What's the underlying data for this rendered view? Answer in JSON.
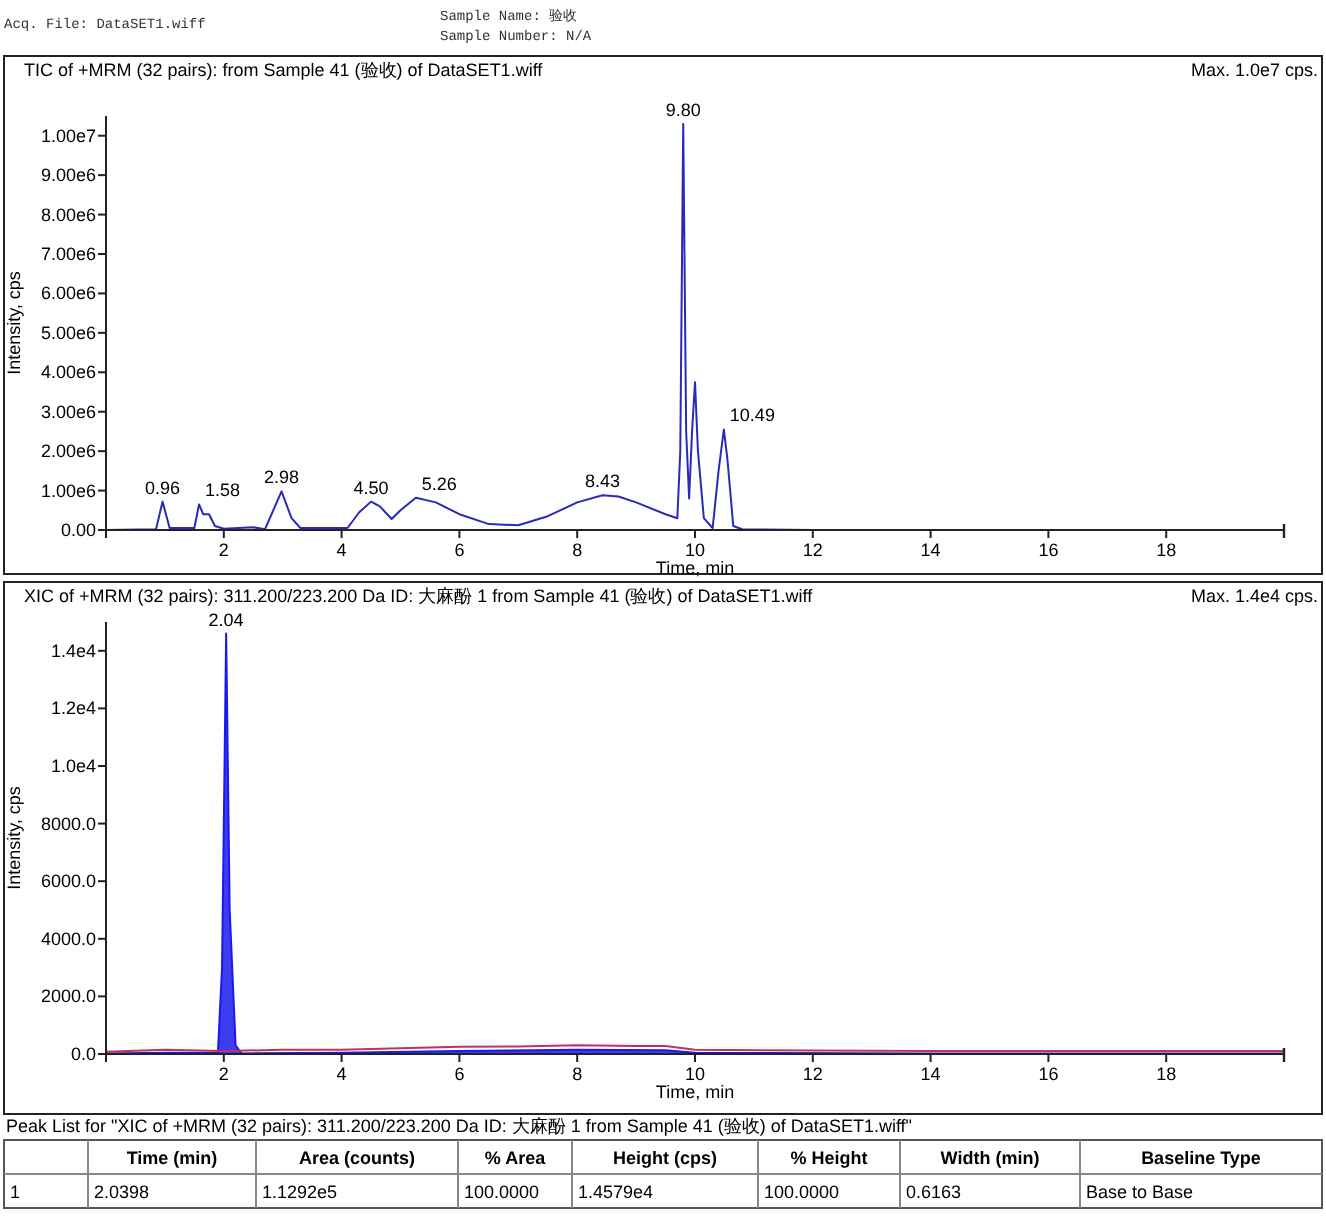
{
  "chart_data": [
    {
      "type": "other",
      "annotations": [
        "Acq. File: DataSET1.wiff",
        "Sample Name: 验收",
        "Sample Number: N/A"
      ]
    },
    {
      "type": "line",
      "title": "TIC of +MRM (32 pairs): from Sample 41 (验收) of DataSET1.wiff",
      "xlabel": "Time, min",
      "ylabel": "Intensity, cps",
      "annotations": [
        "Max. 1.0e7 cps.",
        {
          "text": "0.96",
          "x": 0.96,
          "y": 720000
        },
        {
          "text": "1.58",
          "x": 1.58,
          "y": 650000
        },
        {
          "text": "2.98",
          "x": 2.98,
          "y": 980000
        },
        {
          "text": "4.50",
          "x": 4.5,
          "y": 720000
        },
        {
          "text": "5.26",
          "x": 5.26,
          "y": 820000
        },
        {
          "text": "8.43",
          "x": 8.43,
          "y": 880000
        },
        {
          "text": "9.80",
          "x": 9.8,
          "y": 10300000
        },
        {
          "text": "10.49",
          "x": 10.49,
          "y": 2550000
        }
      ],
      "xlim": [
        0,
        20
      ],
      "xticks": [
        2,
        4,
        6,
        8,
        10,
        12,
        14,
        16,
        18
      ],
      "ylim": [
        0,
        10500000
      ],
      "yticks": [
        {
          "value": 0,
          "label": "0.00"
        },
        {
          "value": 1000000,
          "label": "1.00e6"
        },
        {
          "value": 2000000,
          "label": "2.00e6"
        },
        {
          "value": 3000000,
          "label": "3.00e6"
        },
        {
          "value": 4000000,
          "label": "4.00e6"
        },
        {
          "value": 5000000,
          "label": "5.00e6"
        },
        {
          "value": 6000000,
          "label": "6.00e6"
        },
        {
          "value": 7000000,
          "label": "7.00e6"
        },
        {
          "value": 8000000,
          "label": "8.00e6"
        },
        {
          "value": 9000000,
          "label": "9.00e6"
        },
        {
          "value": 10000000,
          "label": "1.00e7"
        }
      ],
      "series": [
        {
          "color": "#2a2ab8",
          "x": [
            0,
            0.85,
            0.96,
            1.08,
            1.5,
            1.58,
            1.65,
            1.75,
            1.85,
            2.0,
            2.5,
            2.7,
            2.98,
            3.15,
            3.3,
            4.1,
            4.3,
            4.5,
            4.65,
            4.85,
            5.0,
            5.26,
            5.6,
            6.0,
            6.5,
            7.0,
            7.5,
            8.0,
            8.43,
            8.7,
            9.0,
            9.5,
            9.7,
            9.75,
            9.8,
            9.85,
            9.9,
            9.95,
            10.0,
            10.05,
            10.15,
            10.3,
            10.4,
            10.49,
            10.55,
            10.65,
            10.8,
            12,
            20
          ],
          "values": [
            0,
            20000,
            720000,
            50000,
            50000,
            650000,
            400000,
            400000,
            100000,
            30000,
            70000,
            20000,
            980000,
            300000,
            50000,
            50000,
            450000,
            720000,
            600000,
            280000,
            500000,
            820000,
            700000,
            400000,
            150000,
            120000,
            350000,
            700000,
            880000,
            850000,
            700000,
            400000,
            300000,
            2000000,
            10300000,
            2500000,
            800000,
            2500000,
            3750000,
            2000000,
            300000,
            50000,
            1500000,
            2550000,
            1800000,
            100000,
            20000,
            0,
            0
          ]
        }
      ]
    },
    {
      "type": "line",
      "title": "XIC of +MRM (32 pairs): 311.200/223.200 Da ID: 大麻酚 1 from Sample 41 (验收) of DataSET1.wiff",
      "xlabel": "Time, min",
      "ylabel": "Intensity, cps",
      "annotations": [
        "Max. 1.4e4 cps.",
        {
          "text": "2.04",
          "x": 2.04,
          "y": 14579
        }
      ],
      "xlim": [
        0,
        20
      ],
      "xticks": [
        2,
        4,
        6,
        8,
        10,
        12,
        14,
        16,
        18
      ],
      "ylim": [
        0,
        15000
      ],
      "yticks": [
        {
          "value": 0,
          "label": "0.0"
        },
        {
          "value": 2000,
          "label": "2000.0"
        },
        {
          "value": 4000,
          "label": "4000.0"
        },
        {
          "value": 6000,
          "label": "6000.0"
        },
        {
          "value": 8000,
          "label": "8000.0"
        },
        {
          "value": 10000,
          "label": "1.0e4"
        },
        {
          "value": 12000,
          "label": "1.2e4"
        },
        {
          "value": 14000,
          "label": "1.4e4"
        }
      ],
      "series": [
        {
          "type": "area",
          "color": "#1a1aee",
          "x": [
            0,
            1,
            1.9,
            1.97,
            2.04,
            2.1,
            2.2,
            2.3,
            4,
            6,
            8,
            9.5,
            10,
            14,
            20
          ],
          "values": [
            20,
            40,
            40,
            3000,
            14600,
            5000,
            300,
            20,
            40,
            100,
            150,
            130,
            40,
            20,
            20
          ]
        },
        {
          "type": "line",
          "color": "#c0306a",
          "x": [
            0,
            1,
            2,
            3,
            4,
            5,
            6,
            7,
            8,
            9,
            9.5,
            10,
            12,
            14,
            16,
            18,
            20
          ],
          "values": [
            80,
            150,
            100,
            150,
            150,
            200,
            250,
            260,
            300,
            280,
            280,
            150,
            120,
            100,
            100,
            100,
            100
          ]
        }
      ]
    },
    {
      "type": "other",
      "title": "Peak List for \"XIC of +MRM (32 pairs): 311.200/223.200 Da ID: 大麻酚 1 from Sample 41 (验收) of DataSET1.wiff\"",
      "annotations": [
        "Time (min)",
        "Area (counts)",
        "% Area",
        "Height (cps)",
        "% Height",
        "Width (min)",
        "Baseline Type",
        "1",
        "2.0398",
        "1.1292e5",
        "100.0000",
        "1.4579e4",
        "100.0000",
        "0.6163",
        "Base to Base"
      ]
    }
  ]
}
